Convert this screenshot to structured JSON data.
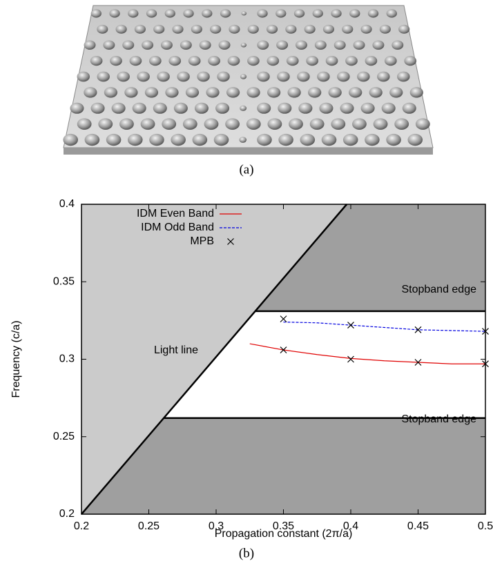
{
  "figure": {
    "captions": [
      "(a)",
      "(b)"
    ]
  },
  "chart_data": {
    "type": "line",
    "xlabel": "Propagation constant (2π/a)",
    "ylabel": "Frequency (c/a)",
    "xlim": [
      0.2,
      0.5
    ],
    "ylim": [
      0.2,
      0.4
    ],
    "xticks": [
      0.2,
      0.25,
      0.3,
      0.35,
      0.4,
      0.45,
      0.5
    ],
    "yticks": [
      0.2,
      0.25,
      0.3,
      0.35,
      0.4
    ],
    "legend": "top-left",
    "light_region_color": "#cbcbcb",
    "stopband_region_color": "#9f9f9f",
    "light_line": {
      "x": [
        0.2,
        0.397
      ],
      "y": [
        0.2,
        0.4
      ]
    },
    "stopbands": [
      0.262,
      0.331
    ],
    "annotations": [
      "Stopband edge",
      "Light line",
      "Stopband edge"
    ],
    "series": [
      {
        "name": "IDM Even Band",
        "color": "#e00000",
        "style": "solid",
        "x": [
          0.325,
          0.35,
          0.375,
          0.4,
          0.425,
          0.45,
          0.475,
          0.5
        ],
        "values": [
          0.31,
          0.306,
          0.303,
          0.3005,
          0.299,
          0.298,
          0.297,
          0.297
        ]
      },
      {
        "name": "IDM Odd Band",
        "color": "#0000e0",
        "style": "dashed",
        "x": [
          0.35,
          0.375,
          0.4,
          0.425,
          0.45,
          0.475,
          0.5
        ],
        "values": [
          0.324,
          0.3235,
          0.322,
          0.3205,
          0.319,
          0.3185,
          0.318
        ]
      },
      {
        "name": "MPB",
        "color": "#000000",
        "style": "markers",
        "x": [
          0.35,
          0.4,
          0.45,
          0.5,
          0.35,
          0.4,
          0.45,
          0.5
        ],
        "values": [
          0.326,
          0.322,
          0.319,
          0.318,
          0.306,
          0.3,
          0.298,
          0.297
        ]
      }
    ]
  }
}
